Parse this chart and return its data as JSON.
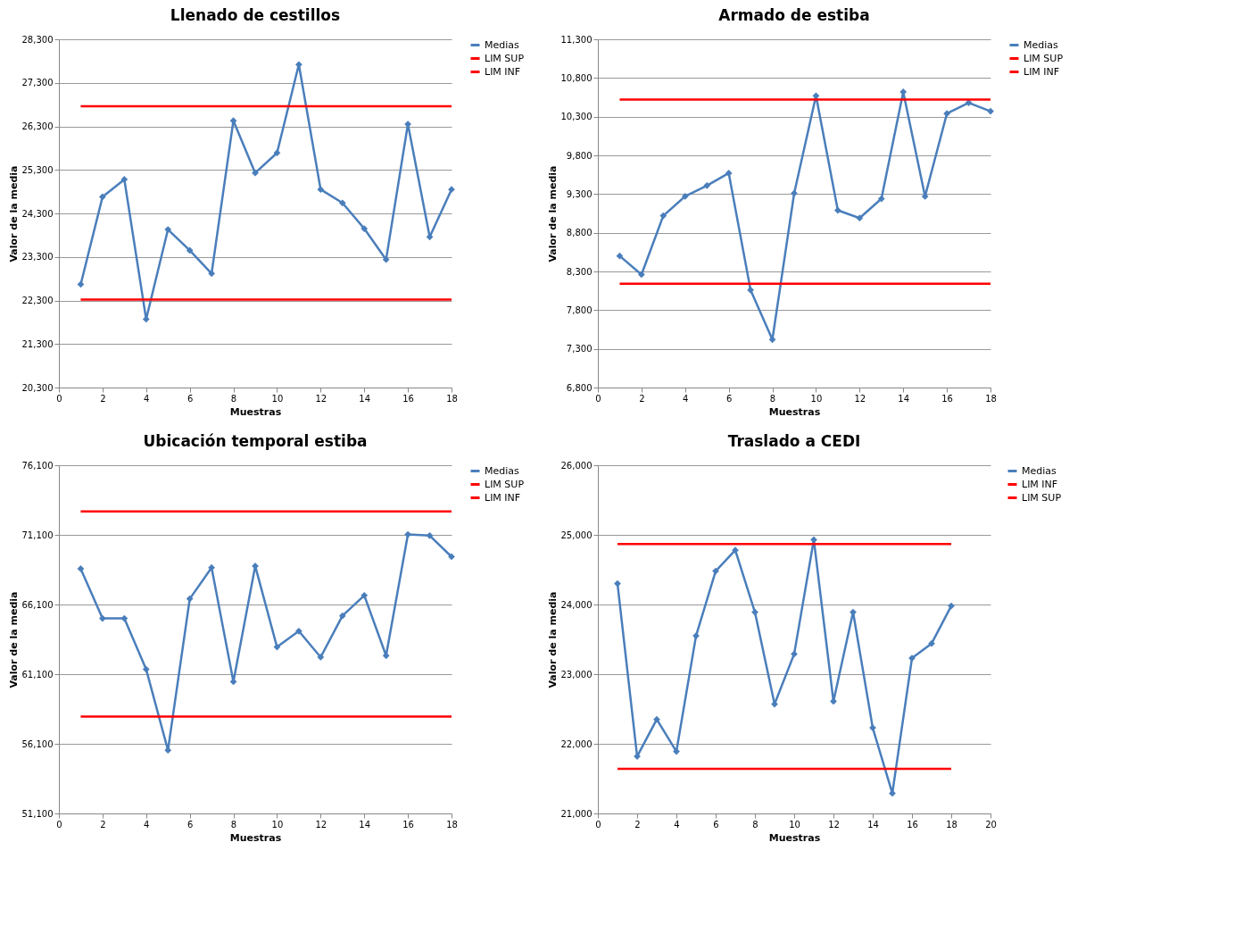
{
  "chart_data": [
    {
      "type": "line",
      "title": "Llenado de cestillos",
      "xlabel": "Muestras",
      "ylabel": "Valor de la media",
      "x": [
        1,
        2,
        3,
        4,
        5,
        6,
        7,
        8,
        9,
        10,
        11,
        12,
        13,
        14,
        15,
        16,
        17,
        18
      ],
      "xlim": [
        0,
        18
      ],
      "xticks": [
        0,
        2,
        4,
        6,
        8,
        10,
        12,
        14,
        16,
        18
      ],
      "ylim": [
        20300,
        28300
      ],
      "yticks": [
        {
          "value": 20300,
          "label": "20,300"
        },
        {
          "value": 21300,
          "label": "21,300"
        },
        {
          "value": 22300,
          "label": "22,300"
        },
        {
          "value": 23300,
          "label": "23,300"
        },
        {
          "value": 24300,
          "label": "24,300"
        },
        {
          "value": 25300,
          "label": "25,300"
        },
        {
          "value": 26300,
          "label": "26,300"
        },
        {
          "value": 27300,
          "label": "27,300"
        },
        {
          "value": 28300,
          "label": "28,300"
        }
      ],
      "grid": "y",
      "legend": "right",
      "series": [
        {
          "name": "Medias",
          "color": "#4a7ebb",
          "marker": "diamond",
          "values": [
            22670,
            24680,
            25080,
            21870,
            23930,
            23450,
            22920,
            26430,
            25230,
            25690,
            27720,
            24850,
            24540,
            23950,
            23240,
            26350,
            23760,
            24850
          ]
        },
        {
          "name": "LIM SUP",
          "color": "#ff0000",
          "values": [
            26760,
            26760,
            26760,
            26760,
            26760,
            26760,
            26760,
            26760,
            26760,
            26760,
            26760,
            26760,
            26760,
            26760,
            26760,
            26760,
            26760,
            26760
          ]
        },
        {
          "name": "LIM INF",
          "color": "#ff0000",
          "values": [
            22320,
            22320,
            22320,
            22320,
            22320,
            22320,
            22320,
            22320,
            22320,
            22320,
            22320,
            22320,
            22320,
            22320,
            22320,
            22320,
            22320,
            22320
          ]
        }
      ]
    },
    {
      "type": "line",
      "title": "Armado de estiba",
      "xlabel": "Muestras",
      "ylabel": "Valor de la media",
      "x": [
        1,
        2,
        3,
        4,
        5,
        6,
        7,
        8,
        9,
        10,
        11,
        12,
        13,
        14,
        15,
        16,
        17,
        18
      ],
      "xlim": [
        0,
        18
      ],
      "xticks": [
        0,
        2,
        4,
        6,
        8,
        10,
        12,
        14,
        16,
        18
      ],
      "ylim": [
        6800,
        11300
      ],
      "yticks": [
        {
          "value": 6800,
          "label": "6,800"
        },
        {
          "value": 7300,
          "label": "7,300"
        },
        {
          "value": 7800,
          "label": "7,800"
        },
        {
          "value": 8300,
          "label": "8,300"
        },
        {
          "value": 8800,
          "label": "8,800"
        },
        {
          "value": 9300,
          "label": "9,300"
        },
        {
          "value": 9800,
          "label": "9,800"
        },
        {
          "value": 10300,
          "label": "10,300"
        },
        {
          "value": 10800,
          "label": "10,800"
        },
        {
          "value": 11300,
          "label": "11,300"
        }
      ],
      "grid": "y",
      "legend": "right",
      "series": [
        {
          "name": "Medias",
          "color": "#4a7ebb",
          "marker": "diamond",
          "values": [
            8500,
            8260,
            9020,
            9270,
            9410,
            9570,
            8060,
            7420,
            9310,
            10570,
            9090,
            8990,
            9240,
            10620,
            9270,
            10340,
            10480,
            10370
          ]
        },
        {
          "name": "LIM SUP",
          "color": "#ff0000",
          "values": [
            10520,
            10520,
            10520,
            10520,
            10520,
            10520,
            10520,
            10520,
            10520,
            10520,
            10520,
            10520,
            10520,
            10520,
            10520,
            10520,
            10520,
            10520
          ]
        },
        {
          "name": "LIM INF",
          "color": "#ff0000",
          "values": [
            8140,
            8140,
            8140,
            8140,
            8140,
            8140,
            8140,
            8140,
            8140,
            8140,
            8140,
            8140,
            8140,
            8140,
            8140,
            8140,
            8140,
            8140
          ]
        }
      ]
    },
    {
      "type": "line",
      "title": "Ubicación temporal estiba",
      "xlabel": "Muestras",
      "ylabel": "Valor de la media",
      "x": [
        1,
        2,
        3,
        4,
        5,
        6,
        7,
        8,
        9,
        10,
        11,
        12,
        13,
        14,
        15,
        16,
        17,
        18
      ],
      "xlim": [
        0,
        18
      ],
      "xticks": [
        0,
        2,
        4,
        6,
        8,
        10,
        12,
        14,
        16,
        18
      ],
      "ylim": [
        51100,
        76100
      ],
      "yticks": [
        {
          "value": 51100,
          "label": "51,100"
        },
        {
          "value": 56100,
          "label": "56,100"
        },
        {
          "value": 61100,
          "label": "61,100"
        },
        {
          "value": 66100,
          "label": "66,100"
        },
        {
          "value": 71100,
          "label": "71,100"
        },
        {
          "value": 76100,
          "label": "76,100"
        }
      ],
      "grid": "y",
      "legend": "right",
      "series": [
        {
          "name": "Medias",
          "color": "#4a7ebb",
          "marker": "diamond",
          "values": [
            68670,
            65100,
            65100,
            61450,
            55640,
            66510,
            68750,
            60560,
            68860,
            63050,
            64190,
            62320,
            65290,
            66750,
            62430,
            71130,
            71050,
            69530
          ]
        },
        {
          "name": "LIM SUP",
          "color": "#ff0000",
          "values": [
            72780,
            72780,
            72780,
            72780,
            72780,
            72780,
            72780,
            72780,
            72780,
            72780,
            72780,
            72780,
            72780,
            72780,
            72780,
            72780,
            72780,
            72780
          ]
        },
        {
          "name": "LIM INF",
          "color": "#ff0000",
          "values": [
            58050,
            58050,
            58050,
            58050,
            58050,
            58050,
            58050,
            58050,
            58050,
            58050,
            58050,
            58050,
            58050,
            58050,
            58050,
            58050,
            58050,
            58050
          ]
        }
      ]
    },
    {
      "type": "line",
      "title": "Traslado a CEDI",
      "xlabel": "Muestras",
      "ylabel": "Valor de la media",
      "x": [
        1,
        2,
        3,
        4,
        5,
        6,
        7,
        8,
        9,
        10,
        11,
        12,
        13,
        14,
        15,
        16,
        17,
        18
      ],
      "xlim": [
        0,
        20
      ],
      "xticks": [
        0,
        2,
        4,
        6,
        8,
        10,
        12,
        14,
        16,
        18,
        20
      ],
      "ylim": [
        21000,
        26000
      ],
      "yticks": [
        {
          "value": 21000,
          "label": "21,000"
        },
        {
          "value": 22000,
          "label": "22,000"
        },
        {
          "value": 23000,
          "label": "23,000"
        },
        {
          "value": 24000,
          "label": "24,000"
        },
        {
          "value": 25000,
          "label": "25,000"
        },
        {
          "value": 26000,
          "label": "26,000"
        }
      ],
      "grid": "y",
      "legend": "right",
      "series": [
        {
          "name": "Medias",
          "color": "#4a7ebb",
          "marker": "diamond",
          "values": [
            24300,
            21820,
            22350,
            21890,
            23550,
            24480,
            24780,
            23890,
            22570,
            23290,
            24930,
            22610,
            23890,
            22230,
            21290,
            23230,
            23440,
            23980
          ]
        },
        {
          "name": "LIM INF",
          "color": "#ff0000",
          "values": [
            21640,
            21640,
            21640,
            21640,
            21640,
            21640,
            21640,
            21640,
            21640,
            21640,
            21640,
            21640,
            21640,
            21640,
            21640,
            21640,
            21640,
            21640
          ]
        },
        {
          "name": "LIM SUP",
          "color": "#ff0000",
          "values": [
            24870,
            24870,
            24870,
            24870,
            24870,
            24870,
            24870,
            24870,
            24870,
            24870,
            24870,
            24870,
            24870,
            24870,
            24870,
            24870,
            24870,
            24870
          ]
        }
      ]
    }
  ]
}
